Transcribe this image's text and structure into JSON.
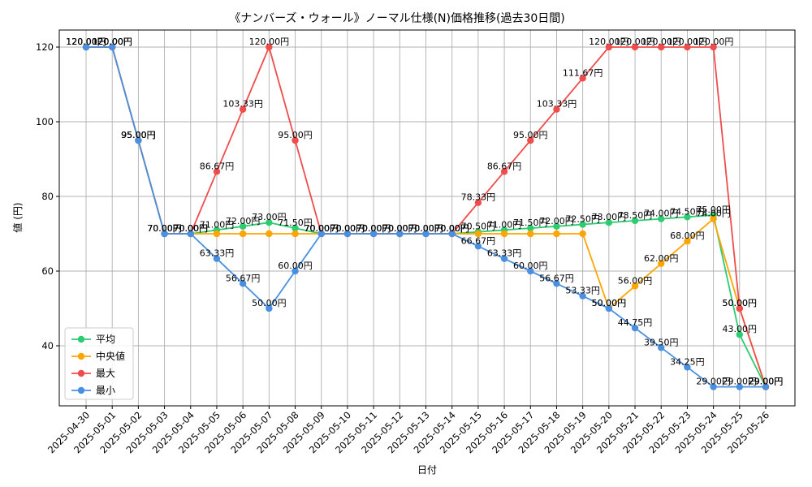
{
  "chart_data": {
    "type": "line",
    "title": "《ナンバーズ・ウォール》ノーマル仕様(N)価格推移(過去30日間)",
    "xlabel": "日付",
    "ylabel": "値 (円)",
    "ylim": [
      25,
      125
    ],
    "yticks": [
      40,
      60,
      80,
      100,
      120
    ],
    "grid": true,
    "legend_position": "lower-left",
    "categories": [
      "2025-04-30",
      "2025-05-01",
      "2025-05-02",
      "2025-05-03",
      "2025-05-04",
      "2025-05-05",
      "2025-05-06",
      "2025-05-07",
      "2025-05-08",
      "2025-05-09",
      "2025-05-10",
      "2025-05-11",
      "2025-05-12",
      "2025-05-13",
      "2025-05-14",
      "2025-05-15",
      "2025-05-16",
      "2025-05-17",
      "2025-05-18",
      "2025-05-19",
      "2025-05-20",
      "2025-05-21",
      "2025-05-22",
      "2025-05-23",
      "2025-05-24",
      "2025-05-25",
      "2025-05-26"
    ],
    "series": [
      {
        "name": "平均",
        "color": "#2ecc71",
        "values": [
          120,
          120,
          95,
          70,
          70,
          71,
          72,
          73,
          71.5,
          70,
          70,
          70,
          70,
          70,
          70,
          70.5,
          71,
          71.5,
          72,
          72.5,
          73,
          73.5,
          74,
          74.5,
          75,
          43,
          29
        ],
        "labels": [
          "120.00円",
          "120.00円",
          "95.00円",
          "70.00円",
          "70.00円",
          "71.00円",
          "72.00円",
          "73.00円",
          "71.50円",
          "70.00円",
          "70.00円",
          "70.00円",
          "70.00円",
          "70.00円",
          "70.00円",
          "70.50円",
          "71.00円",
          "71.50円",
          "72.00円",
          "72.50円",
          "73.00円",
          "73.50円",
          "74.00円",
          "74.50円",
          "75.00円",
          "43.00円",
          "29.00円"
        ]
      },
      {
        "name": "中央値",
        "color": "#ffa500",
        "values": [
          120,
          120,
          95,
          70,
          70,
          70,
          70,
          70,
          70,
          70,
          70,
          70,
          70,
          70,
          70,
          70,
          70,
          70,
          70,
          70,
          50,
          56,
          62,
          68,
          74,
          50,
          29
        ],
        "labels": [
          "120.00円",
          "120.00円",
          "95.00円",
          "70.00円",
          "70.00円",
          "",
          "",
          "",
          "",
          "70.00円",
          "70.00円",
          "70.00円",
          "70.00円",
          "70.00円",
          "70.00円",
          "",
          "",
          "",
          "",
          "",
          "50.00円",
          "56.00円",
          "62.00円",
          "68.00円",
          "74.00円",
          "50.00円",
          "29.00円"
        ]
      },
      {
        "name": "最大",
        "color": "#ef4c4c",
        "values": [
          120,
          120,
          95,
          70,
          70,
          86.67,
          103.33,
          120,
          95,
          70,
          70,
          70,
          70,
          70,
          70,
          78.33,
          86.67,
          95,
          103.33,
          111.67,
          120,
          120,
          120,
          120,
          120,
          50,
          29
        ],
        "labels": [
          "120.00円",
          "120.00円",
          "95.00円",
          "70.00円",
          "70.00円",
          "86.67円",
          "103.33円",
          "120.00円",
          "95.00円",
          "70.00円",
          "70.00円",
          "70.00円",
          "70.00円",
          "70.00円",
          "70.00円",
          "78.33円",
          "86.67円",
          "95.00円",
          "103.33円",
          "111.67円",
          "120.00円",
          "120.00円",
          "120.00円",
          "120.00円",
          "120.00円",
          "50.00円",
          "29.00円"
        ]
      },
      {
        "name": "最小",
        "color": "#4a90e2",
        "values": [
          120,
          120,
          95,
          70,
          70,
          63.33,
          56.67,
          50,
          60,
          70,
          70,
          70,
          70,
          70,
          70,
          66.67,
          63.33,
          60,
          56.67,
          53.33,
          50,
          44.75,
          39.5,
          34.25,
          29,
          29,
          29
        ],
        "labels": [
          "120.00円",
          "120.00円",
          "95.00円",
          "70.00円",
          "70.00円",
          "63.33円",
          "56.67円",
          "50.00円",
          "60.00円",
          "70.00円",
          "70.00円",
          "70.00円",
          "70.00円",
          "70.00円",
          "70.00円",
          "66.67円",
          "63.33円",
          "60.00円",
          "56.67円",
          "53.33円",
          "50.00円",
          "44.75円",
          "39.50円",
          "34.25円",
          "29.00円",
          "29.00円",
          "29.00円"
        ]
      }
    ]
  }
}
